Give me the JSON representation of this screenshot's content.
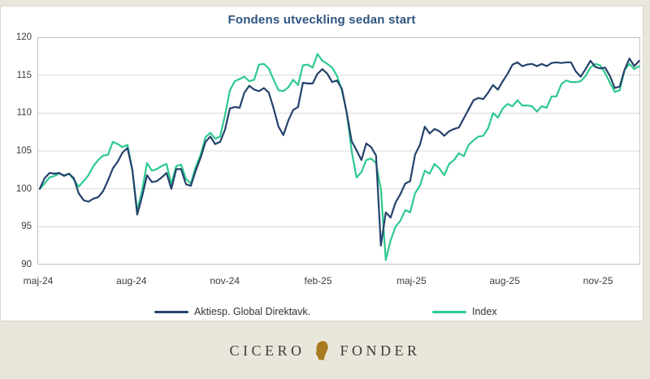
{
  "title": "Fondens utveckling sedan start",
  "colors": {
    "title_text": "#2e5480",
    "fund_line": "#25426c",
    "index_line": "#2ec98f",
    "grid_line": "#d8d8d8",
    "plot_border": "#c2c2c2",
    "axis_text": "#3c3c3c",
    "page_band": "#e9e7db",
    "card_bg": "#ffffff",
    "logo_gold": "#a87a20",
    "brand_text": "#3e3c35"
  },
  "chart_data": {
    "type": "line",
    "title": "Fondens utveckling sedan start",
    "x_unit": "months since start (0 = maj-24)",
    "x0": 0.05,
    "dx": 0.1567,
    "y_min": 90,
    "y_max": 120,
    "y_step": 5,
    "grid": true,
    "legend_position": "bottom",
    "x_ticks": [
      {
        "t": 0,
        "label": "maj-24"
      },
      {
        "t": 3,
        "label": "aug-24"
      },
      {
        "t": 6,
        "label": "nov-24"
      },
      {
        "t": 9,
        "label": "feb-25"
      },
      {
        "t": 12,
        "label": "maj-25"
      },
      {
        "t": 15,
        "label": "aug-25"
      },
      {
        "t": 18,
        "label": "nov-25"
      }
    ],
    "series": [
      {
        "name": "Aktiesp. Global Direktavk.",
        "color": "#25426c",
        "values": [
          100.0,
          101.4,
          102.1,
          102.0,
          102.1,
          101.7,
          102.0,
          101.4,
          99.4,
          98.5,
          98.3,
          98.7,
          98.9,
          99.7,
          101.1,
          102.7,
          103.6,
          104.8,
          105.4,
          102.5,
          96.6,
          99.0,
          101.8,
          100.9,
          101.0,
          101.5,
          102.1,
          100.0,
          102.6,
          102.6,
          100.6,
          100.4,
          102.4,
          104.1,
          106.2,
          106.9,
          105.9,
          106.2,
          107.8,
          110.6,
          110.8,
          110.7,
          112.7,
          113.6,
          113.1,
          112.9,
          113.3,
          112.7,
          110.6,
          108.2,
          107.1,
          109.0,
          110.4,
          110.8,
          114.0,
          113.9,
          113.9,
          115.2,
          115.8,
          115.2,
          114.1,
          114.3,
          113.2,
          110.0,
          106.3,
          105.1,
          103.8,
          106.0,
          105.5,
          104.4,
          92.5,
          96.9,
          96.2,
          98.2,
          99.3,
          100.7,
          101.0,
          104.5,
          105.8,
          108.2,
          107.3,
          107.9,
          107.6,
          107.0,
          107.6,
          107.9,
          108.1,
          109.3,
          110.5,
          111.7,
          112.0,
          111.85,
          112.7,
          113.7,
          113.1,
          114.2,
          115.2,
          116.4,
          116.7,
          116.2,
          116.4,
          116.5,
          116.2,
          116.5,
          116.2,
          116.6,
          116.7,
          116.6,
          116.7,
          116.7,
          115.5,
          114.8,
          115.8,
          116.9,
          116.1,
          115.9,
          116.0,
          114.9,
          113.3,
          113.5,
          115.7,
          117.2,
          116.2,
          116.9
        ]
      },
      {
        "name": "Index",
        "color": "#2ec98f",
        "values": [
          100.0,
          100.7,
          101.5,
          101.7,
          102.0,
          101.8,
          102.0,
          101.2,
          100.3,
          101.0,
          101.8,
          103.0,
          103.8,
          104.4,
          104.5,
          106.2,
          105.9,
          105.5,
          105.8,
          102.5,
          97.1,
          99.8,
          103.4,
          102.4,
          102.6,
          103.0,
          103.3,
          100.6,
          103.0,
          103.2,
          101.3,
          100.7,
          102.9,
          104.5,
          106.8,
          107.4,
          106.6,
          106.9,
          109.7,
          113.0,
          114.2,
          114.5,
          114.8,
          114.2,
          114.4,
          116.4,
          116.5,
          115.9,
          114.4,
          113.0,
          112.9,
          113.4,
          114.4,
          113.7,
          116.3,
          116.4,
          116.0,
          117.8,
          116.9,
          116.5,
          116.0,
          114.9,
          113.0,
          110.0,
          105.0,
          101.5,
          102.2,
          103.8,
          104.0,
          103.4,
          99.9,
          90.6,
          93.2,
          95.0,
          95.8,
          97.2,
          96.9,
          99.4,
          100.4,
          102.4,
          102.0,
          103.3,
          102.7,
          101.8,
          103.3,
          103.8,
          104.7,
          104.3,
          105.8,
          106.4,
          106.9,
          107.0,
          108.0,
          110.0,
          109.4,
          110.6,
          111.2,
          110.9,
          111.7,
          111.0,
          111.0,
          110.9,
          110.2,
          110.9,
          110.7,
          112.2,
          112.2,
          113.8,
          114.3,
          114.1,
          114.1,
          114.2,
          114.9,
          116.0,
          116.5,
          116.3,
          115.3,
          114.0,
          112.8,
          113.0,
          115.7,
          116.5,
          115.8,
          116.2
        ]
      }
    ]
  },
  "legend": {
    "items": [
      {
        "label": "Aktiesp. Global Direktavk."
      },
      {
        "label": "Index"
      }
    ]
  },
  "footer": {
    "brand_left": "CICERO",
    "brand_right": "FONDER",
    "logo": "cicero-head"
  }
}
